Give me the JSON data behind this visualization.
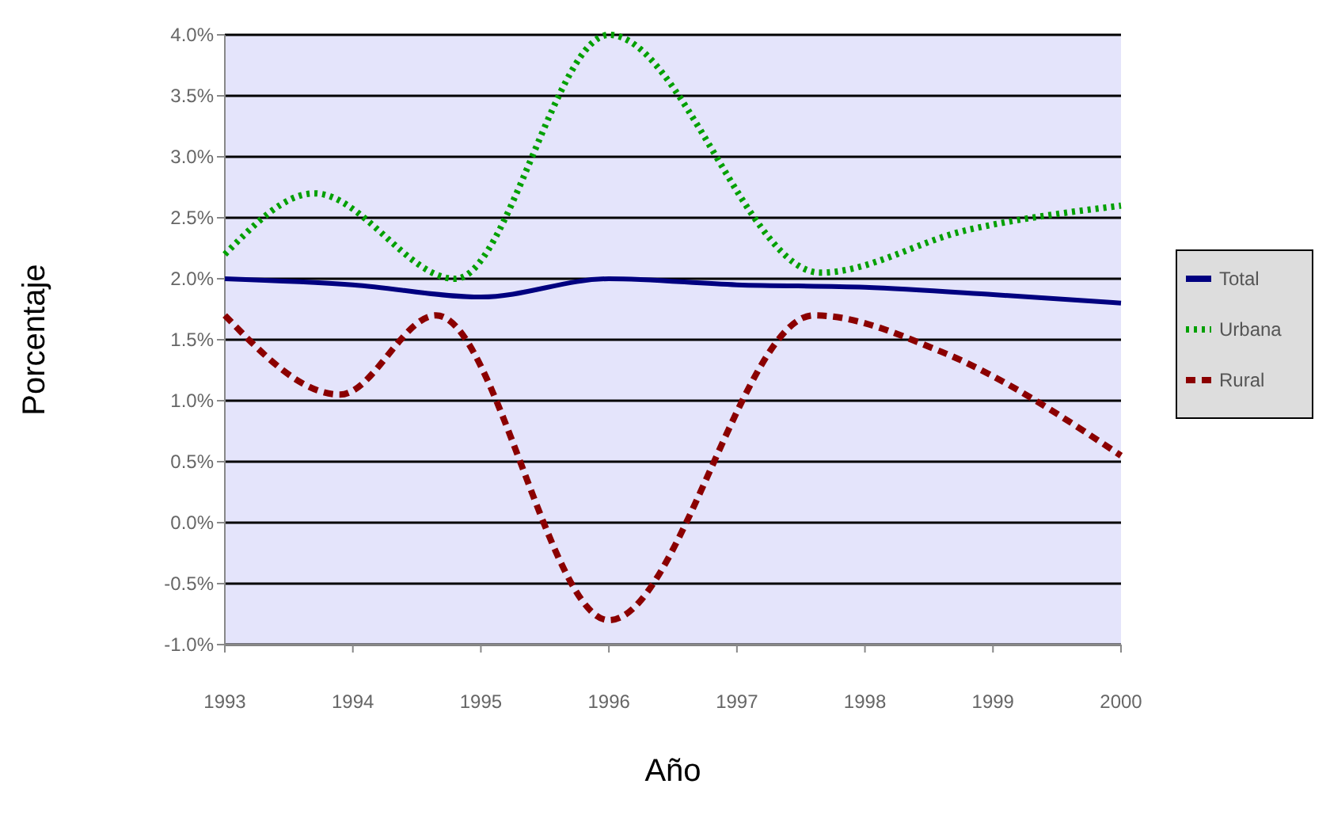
{
  "chart_data": {
    "type": "line",
    "xlabel": "Año",
    "ylabel": "Porcentaje",
    "xlim": [
      1993,
      2000
    ],
    "xticks": [
      1993,
      1994,
      1995,
      1996,
      1997,
      1998,
      1999,
      2000
    ],
    "ylim": [
      -1,
      4
    ],
    "yticks": [
      {
        "value": -1,
        "label": "-1.0%"
      },
      {
        "value": -0.5,
        "label": "-0.5%"
      },
      {
        "value": 0,
        "label": "0.0%"
      },
      {
        "value": 0.5,
        "label": "0.5%"
      },
      {
        "value": 1,
        "label": "1.0%"
      },
      {
        "value": 1.5,
        "label": "1.5%"
      },
      {
        "value": 2,
        "label": "2.0%"
      },
      {
        "value": 2.5,
        "label": "2.5%"
      },
      {
        "value": 3,
        "label": "3.0%"
      },
      {
        "value": 3.5,
        "label": "3.5%"
      },
      {
        "value": 4,
        "label": "4.0%"
      }
    ],
    "grid": "y",
    "legend": "right",
    "series": [
      {
        "name": "Total",
        "color": "#000080",
        "line_style": "solid",
        "x": [
          1993,
          1994,
          1995,
          1996,
          1997,
          1998,
          1999,
          2000
        ],
        "values": [
          2.0,
          1.95,
          1.85,
          2.0,
          1.95,
          1.93,
          1.87,
          1.8
        ]
      },
      {
        "name": "Urbana",
        "color": "#00a000",
        "line_style": "dotted",
        "x": [
          1993,
          1993.7,
          1994.8,
          1996,
          1997.65,
          1998.8,
          2000
        ],
        "values": [
          2.2,
          2.7,
          2.0,
          4.0,
          2.05,
          2.4,
          2.6
        ]
      },
      {
        "name": "Rural",
        "color": "#8b0000",
        "line_style": "dashed",
        "x": [
          1993,
          1993.9,
          1994.65,
          1996,
          1997.6,
          1998.6,
          2000
        ],
        "values": [
          1.7,
          1.05,
          1.7,
          -0.8,
          1.7,
          1.4,
          0.55
        ]
      }
    ]
  }
}
